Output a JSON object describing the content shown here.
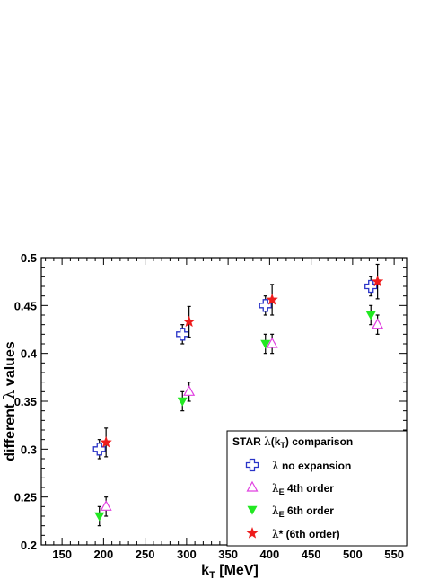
{
  "chart_data": {
    "type": "scatter",
    "title": "",
    "xlabel": {
      "main": "k",
      "sub": "T",
      "unit": " [MeV]"
    },
    "ylabel": {
      "prefix": "different ",
      "greek": "λ",
      "suffix": " values"
    },
    "xlim": [
      125,
      565
    ],
    "ylim": [
      0.2,
      0.5
    ],
    "x_ticks": [
      150,
      200,
      250,
      300,
      350,
      400,
      450,
      500,
      550
    ],
    "y_ticks": [
      0.2,
      0.25,
      0.3,
      0.35,
      0.4,
      0.45,
      0.5
    ],
    "grid": false,
    "legend": {
      "position": "bottom-right",
      "title_parts": {
        "pre": "STAR ",
        "greek": "λ",
        "mid": "(k",
        "sub": "T",
        "post": ") comparison"
      },
      "entries": [
        {
          "key": "no_exp",
          "greek": "λ",
          "sub": "",
          "text": " no expansion"
        },
        {
          "key": "e4",
          "greek": "λ",
          "sub": "E",
          "text": " 4th order"
        },
        {
          "key": "e6",
          "greek": "λ",
          "sub": "E",
          "text": " 6th order"
        },
        {
          "key": "star6",
          "greek": "λ",
          "sub": "",
          "text": "* (6th order)"
        }
      ]
    },
    "series": [
      {
        "key": "no_exp",
        "marker": "open-cross",
        "color": "#2a34c8",
        "points": [
          {
            "x": 195,
            "y": 0.3,
            "err": 0.01
          },
          {
            "x": 295,
            "y": 0.42,
            "err": 0.01
          },
          {
            "x": 395,
            "y": 0.45,
            "err": 0.01
          },
          {
            "x": 522,
            "y": 0.47,
            "err": 0.01
          }
        ]
      },
      {
        "key": "e4",
        "marker": "open-triangle-up",
        "color": "#e040e0",
        "points": [
          {
            "x": 203,
            "y": 0.24,
            "err": 0.01
          },
          {
            "x": 303,
            "y": 0.36,
            "err": 0.01
          },
          {
            "x": 403,
            "y": 0.41,
            "err": 0.01
          },
          {
            "x": 530,
            "y": 0.43,
            "err": 0.01
          }
        ]
      },
      {
        "key": "e6",
        "marker": "filled-triangle-down",
        "color": "#22e822",
        "points": [
          {
            "x": 195,
            "y": 0.23,
            "err": 0.01
          },
          {
            "x": 295,
            "y": 0.35,
            "err": 0.01
          },
          {
            "x": 395,
            "y": 0.41,
            "err": 0.01
          },
          {
            "x": 522,
            "y": 0.44,
            "err": 0.01
          }
        ]
      },
      {
        "key": "star6",
        "marker": "filled-star",
        "color": "#ee1c1c",
        "points": [
          {
            "x": 203,
            "y": 0.307,
            "err": 0.015
          },
          {
            "x": 303,
            "y": 0.433,
            "err": 0.016
          },
          {
            "x": 403,
            "y": 0.456,
            "err": 0.016
          },
          {
            "x": 530,
            "y": 0.475,
            "err": 0.018
          }
        ]
      }
    ]
  }
}
